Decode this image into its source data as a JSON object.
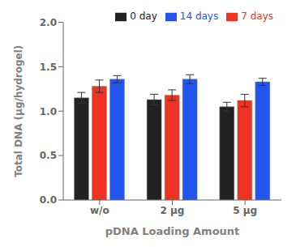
{
  "chart_data": {
    "type": "bar",
    "categories": [
      "w/o",
      "2 μg",
      "5 μg"
    ],
    "series": [
      {
        "name": "0 day",
        "color": "#222222",
        "values": [
          1.15,
          1.13,
          1.05
        ],
        "errors": [
          0.06,
          0.06,
          0.05
        ]
      },
      {
        "name": "7 days",
        "color": "#ee3322",
        "values": [
          1.28,
          1.18,
          1.12
        ],
        "errors": [
          0.07,
          0.06,
          0.07
        ]
      },
      {
        "name": "14 days",
        "color": "#2255ee",
        "values": [
          1.36,
          1.36,
          1.33
        ],
        "errors": [
          0.04,
          0.05,
          0.04
        ]
      }
    ],
    "xlabel": "pDNA Loading Amount",
    "ylabel": "Total DNA (μg/hydrogel)",
    "ylim": [
      0.0,
      2.0
    ],
    "yticks": [
      {
        "value": 0,
        "label": "0.0"
      },
      0.5,
      {
        "value": 1,
        "label": "1.0"
      },
      1.5,
      {
        "value": 2,
        "label": "2.0"
      }
    ],
    "grid": false,
    "legend": "upper right"
  }
}
